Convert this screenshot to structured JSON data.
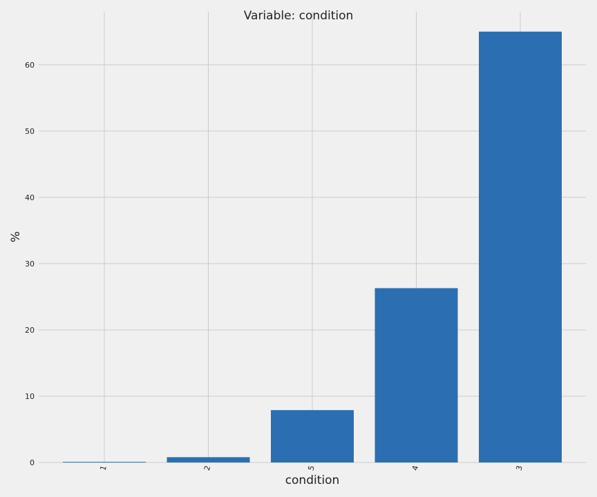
{
  "chart_data": {
    "type": "bar",
    "title": "Variable: condition",
    "xlabel": "condition",
    "ylabel": "%",
    "categories": [
      "1",
      "2",
      "5",
      "4",
      "3"
    ],
    "values": [
      0.1,
      0.8,
      7.9,
      26.3,
      65.0
    ],
    "ylim": [
      0,
      68
    ],
    "yticks": [
      0,
      10,
      20,
      30,
      40,
      50,
      60
    ],
    "grid": true,
    "bar_color": "#2b6fb2",
    "grid_color": "#cbcbcb",
    "background": "#f0f0f0"
  }
}
